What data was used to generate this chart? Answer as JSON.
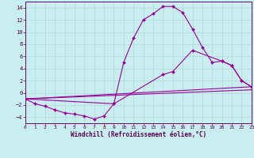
{
  "xlabel": "Windchill (Refroidissement éolien,°C)",
  "bg_color": "#c8eef0",
  "grid_color": "#b0d8da",
  "line_color": "#990099",
  "xlim": [
    0,
    23
  ],
  "ylim": [
    -5,
    15
  ],
  "xticks": [
    0,
    1,
    2,
    3,
    4,
    5,
    6,
    7,
    8,
    9,
    10,
    11,
    12,
    13,
    14,
    15,
    16,
    17,
    18,
    19,
    20,
    21,
    22,
    23
  ],
  "yticks": [
    -4,
    -2,
    0,
    2,
    4,
    6,
    8,
    10,
    12,
    14
  ],
  "line1_x": [
    0,
    1,
    2,
    3,
    4,
    5,
    6,
    7,
    8,
    9,
    10,
    11,
    12,
    13,
    14,
    15,
    16,
    17,
    18,
    19,
    20,
    21,
    22,
    23
  ],
  "line1_y": [
    -1.0,
    -1.8,
    -2.2,
    -2.8,
    -3.3,
    -3.5,
    -3.8,
    -4.3,
    -3.8,
    -1.8,
    5.0,
    9.0,
    12.0,
    13.0,
    14.2,
    14.2,
    13.2,
    10.5,
    7.5,
    5.0,
    5.2,
    4.5,
    2.0,
    1.0
  ],
  "line2_x": [
    0,
    9,
    14,
    15,
    17,
    20,
    21,
    22,
    23
  ],
  "line2_y": [
    -1.0,
    -1.8,
    3.0,
    3.5,
    7.0,
    5.2,
    4.5,
    2.0,
    1.0
  ],
  "line3_x": [
    0,
    23
  ],
  "line3_y": [
    -1.0,
    1.0
  ],
  "line4_x": [
    0,
    23
  ],
  "line4_y": [
    -1.0,
    0.5
  ],
  "xlabel_fontsize": 5.5,
  "tick_fontsize": 4.5
}
